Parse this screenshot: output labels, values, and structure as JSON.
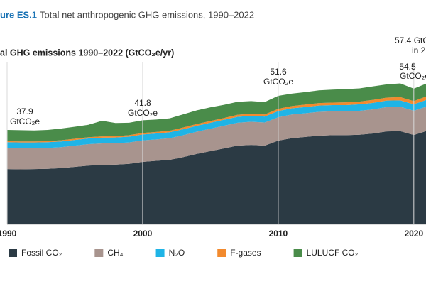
{
  "chart_data": {
    "type": "stacked_area",
    "figure_label": "ure ES.1",
    "title": "Total net anthropogenic GHG emissions, 1990–2022",
    "subtitle": "al GHG emissions 1990–2022 (GtCO₂e/yr)",
    "x": [
      1990,
      1991,
      1992,
      1993,
      1994,
      1995,
      1996,
      1997,
      1998,
      1999,
      2000,
      2001,
      2002,
      2003,
      2004,
      2005,
      2006,
      2007,
      2008,
      2009,
      2010,
      2011,
      2012,
      2013,
      2014,
      2015,
      2016,
      2017,
      2018,
      2019,
      2020,
      2021,
      2022
    ],
    "xlim": [
      1990,
      2022
    ],
    "xticks": [
      1990,
      2000,
      2010,
      2020
    ],
    "ylim": [
      0,
      65
    ],
    "grid": true,
    "series": [
      {
        "name": "Fossil CO₂",
        "color": "#2b3a44",
        "values": [
          22.2,
          22.1,
          22.2,
          22.3,
          22.6,
          23.1,
          23.6,
          23.9,
          24.0,
          24.3,
          25.1,
          25.5,
          25.9,
          27.0,
          28.3,
          29.4,
          30.5,
          31.6,
          31.9,
          31.6,
          33.6,
          34.6,
          35.1,
          35.6,
          35.8,
          35.8,
          36.0,
          36.5,
          37.3,
          37.4,
          35.9,
          37.6,
          38.0
        ]
      },
      {
        "name": "CH₄",
        "color": "#a8948e",
        "values": [
          8.5,
          8.5,
          8.4,
          8.4,
          8.4,
          8.5,
          8.6,
          8.6,
          8.6,
          8.6,
          8.6,
          8.6,
          8.7,
          8.8,
          8.9,
          9.0,
          9.1,
          9.2,
          9.3,
          9.3,
          9.4,
          9.5,
          9.5,
          9.6,
          9.6,
          9.6,
          9.6,
          9.7,
          9.8,
          9.8,
          9.7,
          9.8,
          9.8
        ]
      },
      {
        "name": "N₂O",
        "color": "#1fb4e6",
        "values": [
          2.3,
          2.3,
          2.3,
          2.3,
          2.3,
          2.3,
          2.3,
          2.3,
          2.3,
          2.3,
          2.4,
          2.4,
          2.4,
          2.4,
          2.4,
          2.4,
          2.4,
          2.4,
          2.4,
          2.4,
          2.5,
          2.5,
          2.5,
          2.5,
          2.5,
          2.5,
          2.6,
          2.6,
          2.6,
          2.6,
          2.6,
          2.7,
          2.7
        ]
      },
      {
        "name": "F-gases",
        "color": "#f28a2e",
        "values": [
          0.4,
          0.4,
          0.4,
          0.4,
          0.5,
          0.5,
          0.5,
          0.5,
          0.5,
          0.6,
          0.6,
          0.6,
          0.6,
          0.7,
          0.7,
          0.7,
          0.7,
          0.8,
          0.8,
          0.8,
          0.9,
          0.9,
          1.0,
          1.0,
          1.0,
          1.1,
          1.1,
          1.2,
          1.2,
          1.3,
          1.3,
          1.4,
          1.5
        ]
      },
      {
        "name": "LULUCF CO₂",
        "color": "#4a8c4a",
        "values": [
          4.5,
          4.5,
          4.4,
          4.5,
          4.7,
          4.8,
          5.0,
          6.3,
          5.3,
          5.0,
          5.1,
          5.0,
          5.0,
          5.3,
          5.5,
          5.5,
          5.3,
          5.2,
          5.1,
          5.0,
          5.2,
          5.0,
          5.0,
          5.1,
          5.2,
          5.3,
          5.3,
          5.4,
          5.3,
          5.5,
          5.0,
          5.2,
          5.4
        ]
      }
    ],
    "annotations": [
      {
        "text": "37.9"
      },
      {
        "text": "GtCO₂e"
      },
      {
        "text": "41.8"
      },
      {
        "text": "GtCO₂e"
      },
      {
        "text": "51.6"
      },
      {
        "text": "GtCO₂e"
      },
      {
        "text": "54.5"
      },
      {
        "text": "GtCO₂e"
      },
      {
        "text": "57.4 GtC"
      },
      {
        "text": "in 2"
      }
    ]
  }
}
